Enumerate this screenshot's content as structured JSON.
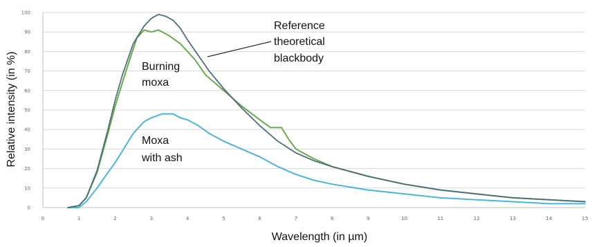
{
  "chart_data": {
    "type": "line",
    "title": "",
    "xlabel": "Wavelength (in µm)",
    "ylabel": "Relative intensity (in %)",
    "xlim": [
      0,
      15
    ],
    "ylim": [
      0,
      100
    ],
    "x_ticks": [
      "0",
      "1",
      "2",
      "3",
      "4",
      "5",
      "6",
      "7",
      "8",
      "9",
      "10",
      "11",
      "12",
      "13",
      "14",
      "15"
    ],
    "y_ticks": [
      "0",
      "10",
      "20",
      "30",
      "40",
      "50",
      "60",
      "70",
      "80",
      "90",
      "100"
    ],
    "grid": true,
    "legend": "none",
    "series": [
      {
        "name": "Reference theoretical blackbody",
        "color": "#4a6a7a",
        "style": "dotted",
        "x": [
          0.7,
          1.0,
          1.2,
          1.5,
          1.8,
          2.0,
          2.2,
          2.5,
          2.8,
          3.0,
          3.2,
          3.4,
          3.6,
          3.8,
          4.0,
          4.3,
          4.6,
          5.0,
          5.5,
          6.0,
          6.5,
          7.0,
          7.5,
          8.0,
          9.0,
          10.0,
          11.0,
          12.0,
          13.0,
          14.0,
          15.0
        ],
        "y": [
          0,
          1,
          5,
          19,
          40,
          55,
          68,
          84,
          93,
          97,
          99,
          98,
          96,
          92,
          86,
          78,
          70,
          61,
          51,
          42,
          34,
          28,
          24,
          21,
          16,
          12,
          9,
          7,
          5,
          4,
          3
        ]
      },
      {
        "name": "Burning moxa",
        "color": "#6aaa4a",
        "style": "solid",
        "x": [
          0.7,
          1.0,
          1.2,
          1.5,
          1.8,
          2.0,
          2.3,
          2.6,
          2.8,
          3.0,
          3.2,
          3.5,
          3.8,
          4.0,
          4.2,
          4.5,
          5.0,
          5.5,
          6.0,
          6.3,
          6.6,
          6.8,
          7.0,
          7.5,
          8.0,
          9.0,
          10.0,
          11.0,
          12.0,
          13.0,
          14.0,
          15.0
        ],
        "y": [
          0,
          1,
          5,
          18,
          38,
          52,
          70,
          87,
          91,
          90,
          91,
          88,
          84,
          80,
          76,
          68,
          60,
          52,
          45,
          41,
          41,
          35,
          30,
          25,
          21,
          16,
          12,
          9,
          7,
          5,
          4,
          3
        ]
      },
      {
        "name": "Moxa with ash",
        "color": "#4ab4dc",
        "style": "solid",
        "x": [
          0.7,
          1.0,
          1.2,
          1.5,
          1.8,
          2.0,
          2.3,
          2.5,
          2.8,
          3.0,
          3.3,
          3.6,
          3.8,
          4.0,
          4.3,
          4.6,
          5.0,
          5.5,
          6.0,
          6.5,
          7.0,
          7.5,
          8.0,
          9.0,
          10.0,
          11.0,
          12.0,
          13.0,
          14.0,
          15.0
        ],
        "y": [
          0,
          0,
          3,
          10,
          18,
          23,
          32,
          38,
          44,
          46,
          48,
          48,
          46,
          45,
          42,
          38,
          34,
          30,
          26,
          21,
          17,
          14,
          12,
          9,
          7,
          5,
          4,
          3,
          2,
          2
        ]
      }
    ],
    "annotations": [
      {
        "lines": [
          "Reference",
          "theoretical",
          "blackbody"
        ]
      },
      {
        "lines": [
          "Burning",
          "moxa"
        ]
      },
      {
        "lines": [
          "Moxa",
          "with ash"
        ]
      }
    ]
  }
}
